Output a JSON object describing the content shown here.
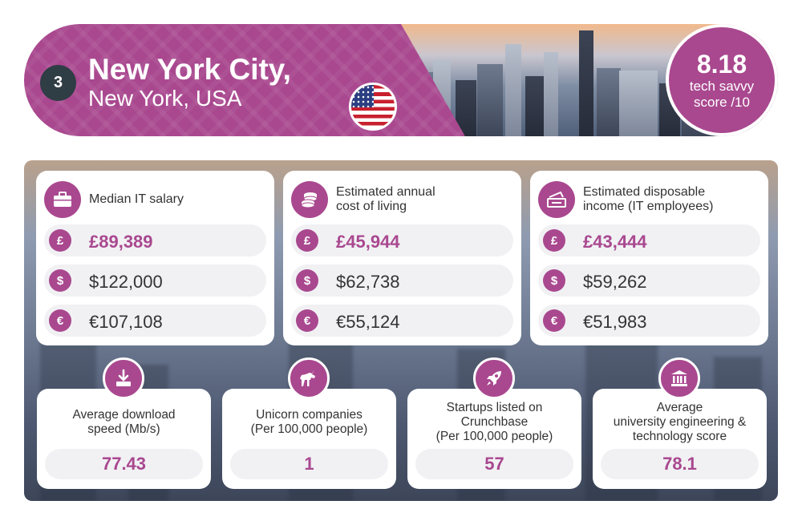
{
  "header": {
    "rank": "3",
    "city": "New York City,",
    "location": "New York, USA",
    "score_value": "8.18",
    "score_label_line1": "tech savvy",
    "score_label_line2": "score /10",
    "flag_icon": "us-flag-icon"
  },
  "colors": {
    "accent": "#a9488f",
    "rank_badge": "#2f3d44",
    "value_pill": "#f1f1f4"
  },
  "stat_cards": [
    {
      "title_line1": "Median IT salary",
      "title_line2": "",
      "icon": "briefcase-icon",
      "rows": [
        {
          "symbol": "£",
          "icon": "pound-icon",
          "value": "£89,389"
        },
        {
          "symbol": "$",
          "icon": "dollar-icon",
          "value": "$122,000"
        },
        {
          "symbol": "€",
          "icon": "euro-icon",
          "value": "€107,108"
        }
      ]
    },
    {
      "title_line1": "Estimated annual",
      "title_line2": "cost of living",
      "icon": "coins-icon",
      "rows": [
        {
          "symbol": "£",
          "icon": "pound-icon",
          "value": "£45,944"
        },
        {
          "symbol": "$",
          "icon": "dollar-icon",
          "value": "$62,738"
        },
        {
          "symbol": "€",
          "icon": "euro-icon",
          "value": "€55,124"
        }
      ]
    },
    {
      "title_line1": "Estimated disposable",
      "title_line2": "income (IT employees)",
      "icon": "cash-icon",
      "rows": [
        {
          "symbol": "£",
          "icon": "pound-icon",
          "value": "£43,444"
        },
        {
          "symbol": "$",
          "icon": "dollar-icon",
          "value": "$59,262"
        },
        {
          "symbol": "€",
          "icon": "euro-icon",
          "value": "€51,983"
        }
      ]
    }
  ],
  "metrics": [
    {
      "label_line1": "Average download",
      "label_line2": "speed (Mb/s)",
      "label_line3": "",
      "value": "77.43",
      "icon": "download-icon"
    },
    {
      "label_line1": "Unicorn companies",
      "label_line2": "(Per 100,000 people)",
      "label_line3": "",
      "value": "1",
      "icon": "unicorn-icon"
    },
    {
      "label_line1": "Startups listed on",
      "label_line2": "Crunchbase",
      "label_line3": "(Per 100,000 people)",
      "value": "57",
      "icon": "rocket-icon"
    },
    {
      "label_line1": "Average",
      "label_line2": "university engineering &",
      "label_line3": "technology score",
      "value": "78.1",
      "icon": "university-icon"
    }
  ]
}
